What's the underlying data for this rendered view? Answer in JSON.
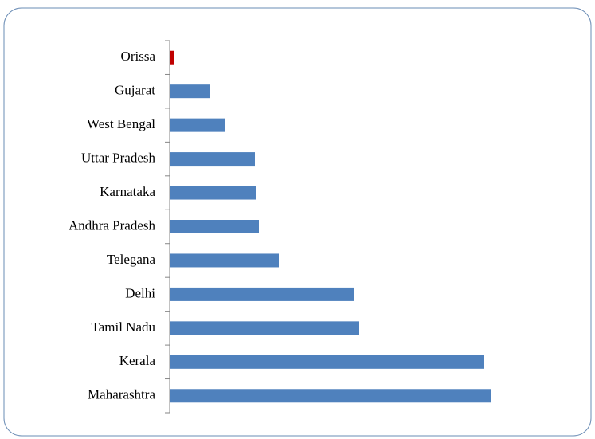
{
  "chart_data": {
    "type": "hbar",
    "categories": [
      "Orissa",
      "Gujarat",
      "West Bengal",
      "Uttar Pradesh",
      "Karnataka",
      "Andhra Pradesh",
      "Telegana",
      "Delhi",
      "Tamil Nadu",
      "Kerala",
      "Maharashtra"
    ],
    "values": [
      5,
      51,
      69,
      107,
      109,
      112,
      137,
      231,
      238,
      395,
      403
    ],
    "colors": [
      "#c00000",
      "#4f81bd",
      "#4f81bd",
      "#4f81bd",
      "#4f81bd",
      "#4f81bd",
      "#4f81bd",
      "#4f81bd",
      "#4f81bd",
      "#4f81bd",
      "#4f81bd"
    ],
    "xlim": [
      0,
      500
    ]
  }
}
